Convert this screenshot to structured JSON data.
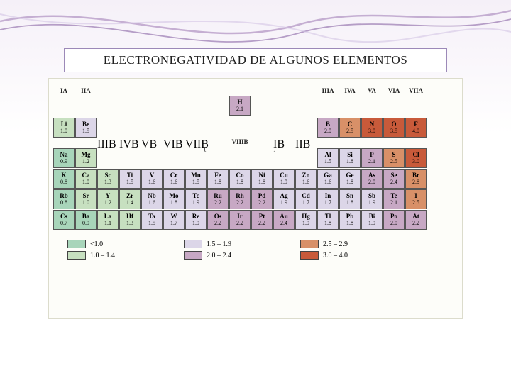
{
  "title": "ELECTRONEGATIVIDAD DE ALGUNOS ELEMENTOS",
  "viiib_label": "VIIIB",
  "colors": {
    "c1": "#a8d5ba",
    "c2": "#c7e0c0",
    "c3": "#dcd6e8",
    "c4": "#c7a8c4",
    "c5": "#d89068",
    "c6": "#c85a3a",
    "bg": "#fdfdf9",
    "border": "#555555",
    "title_border": "#9c89b8"
  },
  "groups": [
    "IA",
    "IIA",
    "IIIB",
    "IVB",
    "VB",
    "VIB",
    "VIIB",
    "",
    "",
    "",
    "IB",
    "IIB",
    "IIIA",
    "IVA",
    "VA",
    "VIA",
    "VIIA"
  ],
  "hydrogen": {
    "sym": "H",
    "val": "2.1",
    "col": 8,
    "color": "#c7a8c4"
  },
  "rows": [
    [
      {
        "sym": "Li",
        "val": "1.0",
        "c": "#c7e0c0"
      },
      {
        "sym": "Be",
        "val": "1.5",
        "c": "#dcd6e8"
      },
      null,
      null,
      null,
      null,
      null,
      null,
      null,
      null,
      null,
      null,
      {
        "sym": "B",
        "val": "2.0",
        "c": "#c7a8c4"
      },
      {
        "sym": "C",
        "val": "2.5",
        "c": "#d89068"
      },
      {
        "sym": "N",
        "val": "3.0",
        "c": "#c85a3a"
      },
      {
        "sym": "O",
        "val": "3.5",
        "c": "#c85a3a"
      },
      {
        "sym": "F",
        "val": "4.0",
        "c": "#c85a3a"
      }
    ],
    [
      {
        "sym": "Na",
        "val": "0.9",
        "c": "#a8d5ba"
      },
      {
        "sym": "Mg",
        "val": "1.2",
        "c": "#c7e0c0"
      },
      null,
      null,
      null,
      null,
      null,
      null,
      null,
      null,
      null,
      null,
      {
        "sym": "Al",
        "val": "1.5",
        "c": "#dcd6e8"
      },
      {
        "sym": "Si",
        "val": "1.8",
        "c": "#dcd6e8"
      },
      {
        "sym": "P",
        "val": "2.1",
        "c": "#c7a8c4"
      },
      {
        "sym": "S",
        "val": "2.5",
        "c": "#d89068"
      },
      {
        "sym": "Cl",
        "val": "3.0",
        "c": "#c85a3a"
      }
    ],
    [
      {
        "sym": "K",
        "val": "0.8",
        "c": "#a8d5ba"
      },
      {
        "sym": "Ca",
        "val": "1.0",
        "c": "#c7e0c0"
      },
      {
        "sym": "Sc",
        "val": "1.3",
        "c": "#c7e0c0"
      },
      {
        "sym": "Ti",
        "val": "1.5",
        "c": "#dcd6e8"
      },
      {
        "sym": "V",
        "val": "1.6",
        "c": "#dcd6e8"
      },
      {
        "sym": "Cr",
        "val": "1.6",
        "c": "#dcd6e8"
      },
      {
        "sym": "Mn",
        "val": "1.5",
        "c": "#dcd6e8"
      },
      {
        "sym": "Fe",
        "val": "1.8",
        "c": "#dcd6e8"
      },
      {
        "sym": "Co",
        "val": "1.8",
        "c": "#dcd6e8"
      },
      {
        "sym": "Ni",
        "val": "1.8",
        "c": "#dcd6e8"
      },
      {
        "sym": "Cu",
        "val": "1.9",
        "c": "#dcd6e8"
      },
      {
        "sym": "Zn",
        "val": "1.6",
        "c": "#dcd6e8"
      },
      {
        "sym": "Ga",
        "val": "1.6",
        "c": "#dcd6e8"
      },
      {
        "sym": "Ge",
        "val": "1.8",
        "c": "#dcd6e8"
      },
      {
        "sym": "As",
        "val": "2.0",
        "c": "#c7a8c4"
      },
      {
        "sym": "Se",
        "val": "2.4",
        "c": "#c7a8c4"
      },
      {
        "sym": "Br",
        "val": "2.8",
        "c": "#d89068"
      }
    ],
    [
      {
        "sym": "Rb",
        "val": "0.8",
        "c": "#a8d5ba"
      },
      {
        "sym": "Sr",
        "val": "1.0",
        "c": "#c7e0c0"
      },
      {
        "sym": "Y",
        "val": "1.2",
        "c": "#c7e0c0"
      },
      {
        "sym": "Zr",
        "val": "1.4",
        "c": "#c7e0c0"
      },
      {
        "sym": "Nb",
        "val": "1.6",
        "c": "#dcd6e8"
      },
      {
        "sym": "Mo",
        "val": "1.8",
        "c": "#dcd6e8"
      },
      {
        "sym": "Tc",
        "val": "1.9",
        "c": "#dcd6e8"
      },
      {
        "sym": "Ru",
        "val": "2.2",
        "c": "#c7a8c4"
      },
      {
        "sym": "Rh",
        "val": "2.2",
        "c": "#c7a8c4"
      },
      {
        "sym": "Pd",
        "val": "2.2",
        "c": "#c7a8c4"
      },
      {
        "sym": "Ag",
        "val": "1.9",
        "c": "#dcd6e8"
      },
      {
        "sym": "Cd",
        "val": "1.7",
        "c": "#dcd6e8"
      },
      {
        "sym": "In",
        "val": "1.7",
        "c": "#dcd6e8"
      },
      {
        "sym": "Sn",
        "val": "1.8",
        "c": "#dcd6e8"
      },
      {
        "sym": "Sb",
        "val": "1.9",
        "c": "#dcd6e8"
      },
      {
        "sym": "Te",
        "val": "2.1",
        "c": "#c7a8c4"
      },
      {
        "sym": "I",
        "val": "2.5",
        "c": "#d89068"
      }
    ],
    [
      {
        "sym": "Cs",
        "val": "0.7",
        "c": "#a8d5ba"
      },
      {
        "sym": "Ba",
        "val": "0.9",
        "c": "#a8d5ba"
      },
      {
        "sym": "La",
        "val": "1.1",
        "c": "#c7e0c0"
      },
      {
        "sym": "Hf",
        "val": "1.3",
        "c": "#c7e0c0"
      },
      {
        "sym": "Ta",
        "val": "1.5",
        "c": "#dcd6e8"
      },
      {
        "sym": "W",
        "val": "1.7",
        "c": "#dcd6e8"
      },
      {
        "sym": "Re",
        "val": "1.9",
        "c": "#dcd6e8"
      },
      {
        "sym": "Os",
        "val": "2.2",
        "c": "#c7a8c4"
      },
      {
        "sym": "Ir",
        "val": "2.2",
        "c": "#c7a8c4"
      },
      {
        "sym": "Pt",
        "val": "2.2",
        "c": "#c7a8c4"
      },
      {
        "sym": "Au",
        "val": "2.4",
        "c": "#c7a8c4"
      },
      {
        "sym": "Hg",
        "val": "1.9",
        "c": "#dcd6e8"
      },
      {
        "sym": "Tl",
        "val": "1.8",
        "c": "#dcd6e8"
      },
      {
        "sym": "Pb",
        "val": "1.8",
        "c": "#dcd6e8"
      },
      {
        "sym": "Bi",
        "val": "1.9",
        "c": "#dcd6e8"
      },
      {
        "sym": "Po",
        "val": "2.0",
        "c": "#c7a8c4"
      },
      {
        "sym": "At",
        "val": "2.2",
        "c": "#c7a8c4"
      }
    ]
  ],
  "legend": [
    {
      "c": "#a8d5ba",
      "t": "<1.0"
    },
    {
      "c": "#dcd6e8",
      "t": "1.5 – 1.9"
    },
    {
      "c": "#d89068",
      "t": "2.5 – 2.9"
    },
    {
      "c": "#c7e0c0",
      "t": "1.0 – 1.4"
    },
    {
      "c": "#c7a8c4",
      "t": "2.0 – 2.4"
    },
    {
      "c": "#c85a3a",
      "t": "3.0 – 4.0"
    }
  ]
}
